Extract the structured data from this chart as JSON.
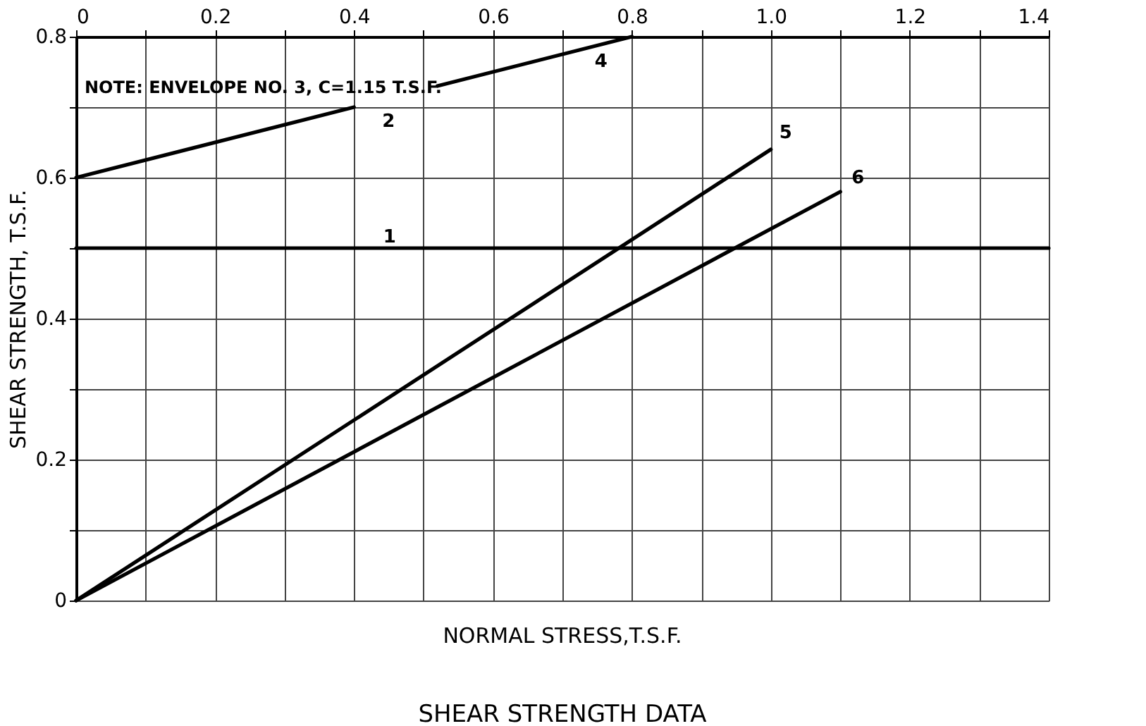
{
  "chart_data": {
    "type": "line",
    "title": "SHEAR STRENGTH DATA",
    "xlabel": "NORMAL STRESS,T.S.F.",
    "ylabel": "SHEAR STRENGTH, T.S.F.",
    "series": [
      {
        "name": "1",
        "color": "#000000",
        "x": [
          0,
          1.4
        ],
        "values": [
          0.5,
          0.5
        ]
      },
      {
        "name": "2",
        "color": "#000000",
        "x": [
          0,
          0.4
        ],
        "values": [
          0.6,
          0.7
        ]
      },
      {
        "name": "4",
        "color": "#000000",
        "x": [
          0.52,
          0.8
        ],
        "values": [
          0.73,
          0.8
        ]
      },
      {
        "name": "5",
        "color": "#000000",
        "x": [
          0,
          1.0
        ],
        "values": [
          0,
          0.64
        ]
      },
      {
        "name": "6",
        "color": "#000000",
        "x": [
          0,
          1.1
        ],
        "values": [
          0,
          0.58
        ]
      }
    ],
    "annotations": [
      "NOTE: ENVELOPE NO. 3, C=1.15 T.S.F."
    ],
    "xlim": [
      0,
      1.4
    ],
    "ylim": [
      0,
      0.8
    ],
    "xticks": [
      0,
      {
        "value": 0.1,
        "label": null
      },
      0.2,
      {
        "value": 0.3,
        "label": null
      },
      0.4,
      {
        "value": 0.5,
        "label": null
      },
      0.6,
      {
        "value": 0.7,
        "label": null
      },
      0.8,
      {
        "value": 0.9,
        "label": null
      },
      {
        "value": 1.0,
        "label": "1.0"
      },
      {
        "value": 1.1,
        "label": null
      },
      1.2,
      {
        "value": 1.3,
        "label": null
      },
      1.4
    ],
    "yticks": [
      0,
      {
        "value": 0.1,
        "label": null
      },
      0.2,
      {
        "value": 0.3,
        "label": null
      },
      0.4,
      {
        "value": 0.5,
        "label": null
      },
      0.6,
      {
        "value": 0.7,
        "label": null
      },
      0.8
    ],
    "grid": true,
    "marker": "none",
    "line_style": "solid"
  }
}
